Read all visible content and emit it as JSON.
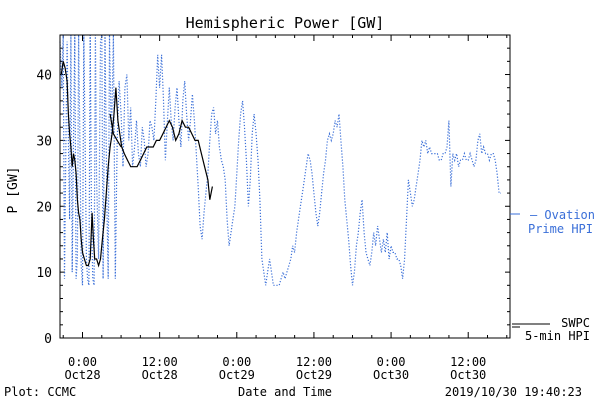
{
  "chart_data": {
    "type": "line",
    "title": "Hemispheric Power [GW]",
    "xlabel": "Date and Time",
    "ylabel": "P [GW]",
    "ylim": [
      0,
      46
    ],
    "yticks": [
      0,
      10,
      20,
      30,
      40
    ],
    "xlim_hours": [
      -3.5,
      66.5
    ],
    "xticks": [
      {
        "h": 0,
        "time": "0:00",
        "date": "Oct28"
      },
      {
        "h": 12,
        "time": "12:00",
        "date": "Oct28"
      },
      {
        "h": 24,
        "time": "0:00",
        "date": "Oct29"
      },
      {
        "h": 36,
        "time": "12:00",
        "date": "Oct29"
      },
      {
        "h": 48,
        "time": "0:00",
        "date": "Oct30"
      },
      {
        "h": 60,
        "time": "12:00",
        "date": "Oct30"
      }
    ],
    "x_unit_note": "",
    "series": [
      {
        "name_lines": [
          "SWPC",
          "5-min HPI"
        ],
        "style": "solid",
        "color": "#000000",
        "segments": [
          [
            [
              -3.3,
              40
            ],
            [
              -3.0,
              42
            ],
            [
              -2.7,
              41
            ],
            [
              -2.4,
              39
            ],
            [
              -2.2,
              34
            ],
            [
              -2.0,
              31
            ],
            [
              -1.8,
              29
            ],
            [
              -1.6,
              26
            ],
            [
              -1.4,
              28
            ],
            [
              -1.2,
              27
            ],
            [
              -1.0,
              25
            ],
            [
              -0.8,
              21
            ],
            [
              -0.6,
              19
            ],
            [
              -0.4,
              18
            ],
            [
              -0.2,
              15
            ],
            [
              0.0,
              13
            ],
            [
              0.3,
              12
            ],
            [
              0.6,
              11
            ],
            [
              0.9,
              11
            ],
            [
              1.2,
              12
            ],
            [
              1.5,
              19
            ],
            [
              1.7,
              15
            ],
            [
              1.9,
              12
            ],
            [
              2.2,
              12
            ],
            [
              2.5,
              11
            ],
            [
              2.8,
              12
            ],
            [
              3.1,
              15
            ],
            [
              3.4,
              18
            ],
            [
              3.7,
              22
            ],
            [
              4.0,
              26
            ],
            [
              4.3,
              29
            ],
            [
              4.6,
              31
            ],
            [
              4.9,
              34
            ],
            [
              5.2,
              38
            ],
            [
              5.5,
              33
            ],
            [
              5.8,
              31
            ],
            [
              6.1,
              29
            ],
            [
              6.5,
              28
            ],
            [
              7.0,
              27
            ],
            [
              7.5,
              26
            ],
            [
              8.0,
              26
            ],
            [
              8.5,
              26
            ],
            [
              9.0,
              27
            ],
            [
              9.5,
              28
            ],
            [
              10.0,
              29
            ],
            [
              10.5,
              29
            ],
            [
              11.0,
              29
            ],
            [
              11.5,
              30
            ],
            [
              12.0,
              30
            ],
            [
              12.5,
              31
            ],
            [
              13.0,
              32
            ],
            [
              13.5,
              33
            ],
            [
              14.0,
              32
            ],
            [
              14.5,
              30
            ],
            [
              15.0,
              31
            ],
            [
              15.5,
              33
            ],
            [
              16.0,
              32
            ],
            [
              16.5,
              32
            ],
            [
              17.0,
              31
            ],
            [
              17.5,
              30
            ],
            [
              18.0,
              30
            ],
            [
              18.5,
              28
            ],
            [
              19.0,
              26
            ],
            [
              19.5,
              24
            ],
            [
              19.8,
              21
            ],
            [
              20.0,
              22
            ],
            [
              20.2,
              23
            ]
          ],
          [
            [
              4.3,
              34
            ],
            [
              4.8,
              31
            ],
            [
              5.4,
              30
            ],
            [
              6.0,
              29
            ]
          ]
        ]
      },
      {
        "name_lines": [
          "– Ovation",
          "Prime HPI"
        ],
        "style": "dotted",
        "color": "#3a6fd8",
        "values": [
          [
            -3.5,
            45
          ],
          [
            -3.2,
            38
          ],
          [
            -3.0,
            46
          ],
          [
            -2.8,
            9
          ],
          [
            -2.6,
            28
          ],
          [
            -2.4,
            45
          ],
          [
            -2.2,
            30
          ],
          [
            -2.0,
            18
          ],
          [
            -1.8,
            46
          ],
          [
            -1.6,
            10
          ],
          [
            -1.4,
            30
          ],
          [
            -1.2,
            46
          ],
          [
            -1.0,
            9
          ],
          [
            -0.8,
            12
          ],
          [
            -0.6,
            46
          ],
          [
            -0.4,
            30
          ],
          [
            -0.2,
            11
          ],
          [
            0.0,
            8
          ],
          [
            0.2,
            46
          ],
          [
            0.4,
            30
          ],
          [
            0.6,
            12
          ],
          [
            0.8,
            9
          ],
          [
            1.0,
            8
          ],
          [
            1.2,
            46
          ],
          [
            1.4,
            18
          ],
          [
            1.6,
            9
          ],
          [
            1.8,
            8
          ],
          [
            2.0,
            46
          ],
          [
            2.2,
            24
          ],
          [
            2.5,
            12
          ],
          [
            2.8,
            45
          ],
          [
            3.0,
            46
          ],
          [
            3.2,
            9
          ],
          [
            3.5,
            46
          ],
          [
            3.8,
            20
          ],
          [
            4.0,
            9
          ],
          [
            4.2,
            46
          ],
          [
            4.5,
            30
          ],
          [
            4.8,
            46
          ],
          [
            5.1,
            9
          ],
          [
            5.4,
            30
          ],
          [
            5.7,
            39
          ],
          [
            6.0,
            34
          ],
          [
            6.3,
            26
          ],
          [
            6.6,
            38
          ],
          [
            6.9,
            40
          ],
          [
            7.2,
            30
          ],
          [
            7.5,
            35
          ],
          [
            7.8,
            26
          ],
          [
            8.1,
            29
          ],
          [
            8.4,
            33
          ],
          [
            8.7,
            28
          ],
          [
            9.0,
            26
          ],
          [
            9.3,
            32
          ],
          [
            9.6,
            30
          ],
          [
            9.9,
            26
          ],
          [
            10.2,
            28
          ],
          [
            10.5,
            33
          ],
          [
            10.8,
            32
          ],
          [
            11.1,
            30
          ],
          [
            11.4,
            36
          ],
          [
            11.7,
            43
          ],
          [
            12.0,
            38
          ],
          [
            12.3,
            43
          ],
          [
            12.6,
            36
          ],
          [
            12.9,
            27
          ],
          [
            13.2,
            33
          ],
          [
            13.5,
            38
          ],
          [
            13.8,
            33
          ],
          [
            14.1,
            30
          ],
          [
            14.4,
            35
          ],
          [
            14.7,
            38
          ],
          [
            15.0,
            33
          ],
          [
            15.3,
            29
          ],
          [
            15.6,
            36
          ],
          [
            15.9,
            39
          ],
          [
            16.2,
            34
          ],
          [
            16.5,
            30
          ],
          [
            16.8,
            33
          ],
          [
            17.1,
            37
          ],
          [
            17.4,
            33
          ],
          [
            17.7,
            28
          ],
          [
            18.0,
            23
          ],
          [
            18.3,
            17
          ],
          [
            18.6,
            15
          ],
          [
            18.9,
            19
          ],
          [
            19.2,
            22
          ],
          [
            19.5,
            25
          ],
          [
            19.8,
            30
          ],
          [
            20.1,
            34
          ],
          [
            20.4,
            35
          ],
          [
            20.7,
            31
          ],
          [
            21.0,
            33
          ],
          [
            21.3,
            29
          ],
          [
            21.6,
            27
          ],
          [
            21.9,
            26
          ],
          [
            22.2,
            24
          ],
          [
            22.5,
            18
          ],
          [
            22.8,
            14
          ],
          [
            23.1,
            16
          ],
          [
            23.4,
            18
          ],
          [
            23.7,
            20
          ],
          [
            24.0,
            25
          ],
          [
            24.3,
            30
          ],
          [
            24.6,
            34
          ],
          [
            24.9,
            36
          ],
          [
            25.2,
            32
          ],
          [
            25.5,
            27
          ],
          [
            25.8,
            20
          ],
          [
            26.1,
            24
          ],
          [
            26.4,
            31
          ],
          [
            26.7,
            34
          ],
          [
            27.0,
            31
          ],
          [
            27.3,
            27
          ],
          [
            27.6,
            21
          ],
          [
            27.9,
            12
          ],
          [
            28.2,
            10
          ],
          [
            28.5,
            8
          ],
          [
            28.8,
            10
          ],
          [
            29.1,
            12
          ],
          [
            29.4,
            10
          ],
          [
            29.7,
            8
          ],
          [
            30.0,
            8
          ],
          [
            30.3,
            8
          ],
          [
            30.6,
            8
          ],
          [
            30.9,
            9
          ],
          [
            31.2,
            10
          ],
          [
            31.5,
            9
          ],
          [
            31.8,
            10
          ],
          [
            32.1,
            11
          ],
          [
            32.4,
            12
          ],
          [
            32.7,
            14
          ],
          [
            33.0,
            13
          ],
          [
            33.3,
            16
          ],
          [
            33.6,
            18
          ],
          [
            33.9,
            20
          ],
          [
            34.2,
            22
          ],
          [
            34.5,
            24
          ],
          [
            34.8,
            26
          ],
          [
            35.1,
            28
          ],
          [
            35.4,
            27
          ],
          [
            35.7,
            25
          ],
          [
            36.0,
            22
          ],
          [
            36.3,
            19
          ],
          [
            36.6,
            17
          ],
          [
            36.9,
            19
          ],
          [
            37.2,
            22
          ],
          [
            37.5,
            25
          ],
          [
            37.8,
            27
          ],
          [
            38.1,
            30
          ],
          [
            38.4,
            31
          ],
          [
            38.7,
            30
          ],
          [
            39.0,
            31
          ],
          [
            39.3,
            33
          ],
          [
            39.6,
            32
          ],
          [
            39.9,
            34
          ],
          [
            40.2,
            30
          ],
          [
            40.5,
            26
          ],
          [
            40.8,
            21
          ],
          [
            41.1,
            18
          ],
          [
            41.4,
            15
          ],
          [
            41.7,
            11
          ],
          [
            42.0,
            8
          ],
          [
            42.3,
            10
          ],
          [
            42.6,
            14
          ],
          [
            42.9,
            16
          ],
          [
            43.2,
            19
          ],
          [
            43.5,
            21
          ],
          [
            43.8,
            16
          ],
          [
            44.1,
            13
          ],
          [
            44.4,
            12
          ],
          [
            44.7,
            11
          ],
          [
            45.0,
            13
          ],
          [
            45.3,
            16
          ],
          [
            45.6,
            14
          ],
          [
            45.9,
            17
          ],
          [
            46.2,
            15
          ],
          [
            46.5,
            13
          ],
          [
            46.8,
            15
          ],
          [
            47.1,
            13
          ],
          [
            47.4,
            16
          ],
          [
            47.7,
            12
          ],
          [
            48.0,
            14
          ],
          [
            48.3,
            13
          ],
          [
            48.6,
            13
          ],
          [
            48.9,
            12
          ],
          [
            49.2,
            12
          ],
          [
            49.5,
            11
          ],
          [
            49.8,
            9
          ],
          [
            50.1,
            12
          ],
          [
            50.4,
            18
          ],
          [
            50.7,
            24
          ],
          [
            51.0,
            22
          ],
          [
            51.3,
            20
          ],
          [
            51.6,
            21
          ],
          [
            51.9,
            23
          ],
          [
            52.2,
            25
          ],
          [
            52.5,
            27
          ],
          [
            52.8,
            30
          ],
          [
            53.1,
            29
          ],
          [
            53.4,
            30
          ],
          [
            53.7,
            28
          ],
          [
            54.0,
            29
          ],
          [
            54.3,
            28
          ],
          [
            54.6,
            28
          ],
          [
            54.9,
            28
          ],
          [
            55.2,
            28
          ],
          [
            55.5,
            27
          ],
          [
            55.8,
            27
          ],
          [
            56.1,
            28
          ],
          [
            56.4,
            28
          ],
          [
            56.7,
            29
          ],
          [
            57.0,
            33
          ],
          [
            57.3,
            23
          ],
          [
            57.6,
            28
          ],
          [
            57.9,
            27
          ],
          [
            58.2,
            28
          ],
          [
            58.5,
            26
          ],
          [
            58.8,
            27
          ],
          [
            59.1,
            27
          ],
          [
            59.4,
            28
          ],
          [
            59.7,
            27
          ],
          [
            60.0,
            27
          ],
          [
            60.3,
            28
          ],
          [
            60.6,
            27
          ],
          [
            60.9,
            26
          ],
          [
            61.2,
            27
          ],
          [
            61.5,
            30
          ],
          [
            61.8,
            31
          ],
          [
            62.1,
            28
          ],
          [
            62.4,
            29
          ],
          [
            62.7,
            28
          ],
          [
            63.0,
            28
          ],
          [
            63.3,
            27
          ],
          [
            63.6,
            28
          ],
          [
            63.9,
            28
          ],
          [
            64.2,
            27
          ],
          [
            64.5,
            25
          ],
          [
            64.8,
            22
          ],
          [
            65.1,
            22
          ]
        ]
      }
    ]
  },
  "footer": {
    "plot_label": "Plot: CCMC",
    "timestamp": "2019/10/30 19:40:23"
  }
}
